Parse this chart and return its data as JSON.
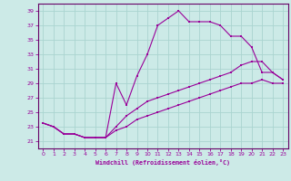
{
  "xlabel": "Windchill (Refroidissement éolien,°C)",
  "bg_color": "#cceae7",
  "grid_color": "#aad4d0",
  "line_color": "#990099",
  "spine_color": "#660066",
  "ylim": [
    20.0,
    40.0
  ],
  "xlim": [
    -0.5,
    23.5
  ],
  "yticks": [
    21,
    23,
    25,
    27,
    29,
    31,
    33,
    35,
    37,
    39
  ],
  "xticks": [
    0,
    1,
    2,
    3,
    4,
    5,
    6,
    7,
    8,
    9,
    10,
    11,
    12,
    13,
    14,
    15,
    16,
    17,
    18,
    19,
    20,
    21,
    22,
    23
  ],
  "line1_x": [
    0,
    1,
    2,
    3,
    4,
    5,
    6,
    7,
    8,
    9,
    10,
    11,
    12,
    13,
    14,
    15,
    16,
    17,
    18,
    19,
    20,
    21,
    22,
    23
  ],
  "line1_y": [
    23.5,
    23.0,
    22.0,
    22.0,
    21.5,
    21.5,
    21.5,
    29.0,
    26.0,
    30.0,
    33.0,
    37.0,
    38.0,
    39.0,
    37.5,
    37.5,
    37.5,
    37.0,
    35.5,
    35.5,
    34.0,
    30.5,
    30.5,
    29.5
  ],
  "line2_x": [
    0,
    1,
    2,
    3,
    4,
    5,
    6,
    7,
    8,
    9,
    10,
    11,
    12,
    13,
    14,
    15,
    16,
    17,
    18,
    19,
    20,
    21,
    22,
    23
  ],
  "line2_y": [
    23.5,
    23.0,
    22.0,
    22.0,
    21.5,
    21.5,
    21.5,
    23.0,
    24.5,
    25.5,
    26.5,
    27.0,
    27.5,
    28.0,
    28.5,
    29.0,
    29.5,
    30.0,
    30.5,
    31.5,
    32.0,
    32.0,
    30.5,
    29.5
  ],
  "line3_x": [
    0,
    1,
    2,
    3,
    4,
    5,
    6,
    7,
    8,
    9,
    10,
    11,
    12,
    13,
    14,
    15,
    16,
    17,
    18,
    19,
    20,
    21,
    22,
    23
  ],
  "line3_y": [
    23.5,
    23.0,
    22.0,
    22.0,
    21.5,
    21.5,
    21.5,
    22.5,
    23.0,
    24.0,
    24.5,
    25.0,
    25.5,
    26.0,
    26.5,
    27.0,
    27.5,
    28.0,
    28.5,
    29.0,
    29.0,
    29.5,
    29.0,
    29.0
  ]
}
